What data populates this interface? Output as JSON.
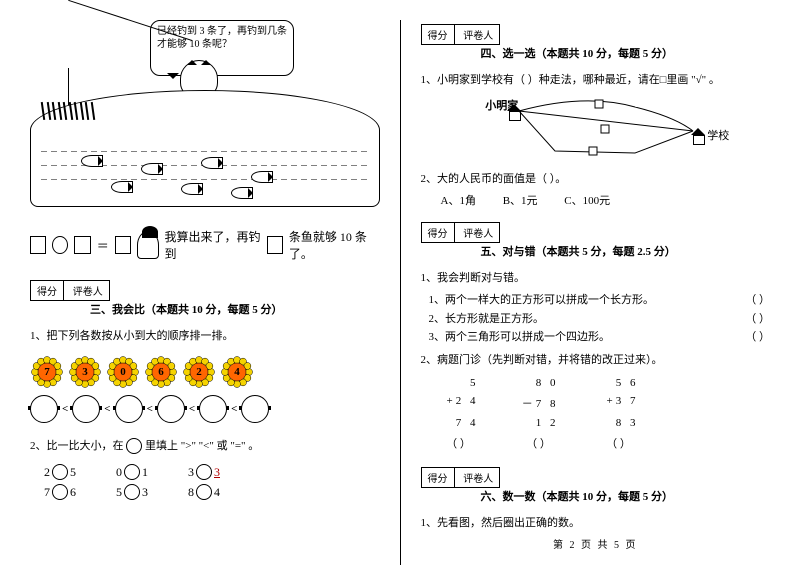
{
  "left": {
    "speech_bubble": "已经钓到 3 条了，再钓到几条才能够 10 条呢？",
    "eq_text1": "我算出来了，再钓到",
    "eq_text2": "条鱼就够 10 条了。",
    "scorebox": {
      "c1": "得分",
      "c2": "评卷人"
    },
    "sec3_title": "三、我会比（本题共 10 分，每题 5 分）",
    "q1_label": "1、把下列各数按从小到大的顺序排一排。",
    "flowers": [
      "7",
      "3",
      "0",
      "6",
      "2",
      "4"
    ],
    "flower_colors": {
      "petal": "#f5d300",
      "center": "#ff6600"
    },
    "q2_label": "2、比一比大小，在",
    "q2_label_tail": "里填上 \">\" \"<\" 或 \"=\" 。",
    "cmp_rows": [
      [
        [
          "2",
          "5"
        ],
        [
          "0",
          "1"
        ],
        [
          "3",
          "3"
        ]
      ],
      [
        [
          "7",
          "6"
        ],
        [
          "5",
          "3"
        ],
        [
          "8",
          "4"
        ]
      ]
    ],
    "cmp_red_r0c2b": true
  },
  "right": {
    "scorebox": {
      "c1": "得分",
      "c2": "评卷人"
    },
    "sec4_title": "四、选一选（本题共 10 分，每题 5 分）",
    "r_q1": "1、小明家到学校有（  ）种走法，哪种最近，请在□里画 \"√\" 。",
    "dia_labels": {
      "home": "小明家",
      "school": "学校"
    },
    "r_q2": "2、大的人民币的面值是（    ）。",
    "r_q2_opts": {
      "a": "A、1角",
      "b": "B、1元",
      "c": "C、100元"
    },
    "sec5_title": "五、对与错（本题共 5 分，每题 2.5 分）",
    "r5_q1": "1、我会判断对与错。",
    "tf_items": [
      "1、两个一样大的正方形可以拼成一个长方形。",
      "2、长方形就是正方形。",
      "3、两个三角形可以拼成一个四边形。"
    ],
    "tf_paren": "（    ）",
    "r5_q2": "2、病题门诊（先判断对错，并将错的改正过来）。",
    "calcs": [
      {
        "a": "5",
        "b": "+2 4",
        "r": "7 4"
      },
      {
        "a": "8 0",
        "b": "－7 8",
        "r": "1 2"
      },
      {
        "a": "5 6",
        "b": "+3 7",
        "r": "8 3"
      }
    ],
    "mark_paren": "（    ）",
    "sec6_title": "六、数一数（本题共 10 分，每题 5 分）",
    "r6_q1": "1、先看图，然后圈出正确的数。"
  },
  "footer": "第 2 页 共 5 页"
}
